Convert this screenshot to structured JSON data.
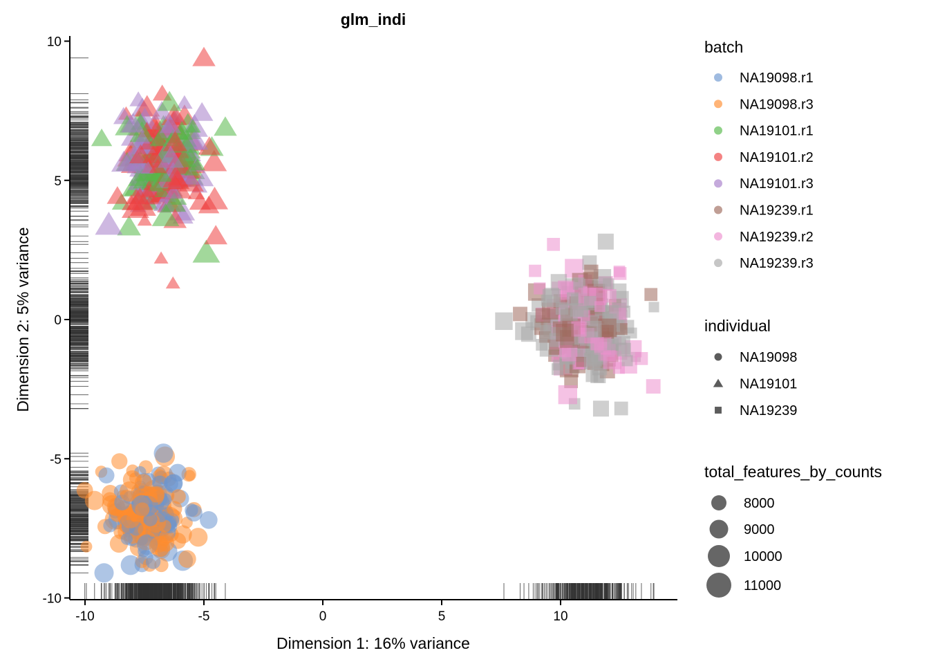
{
  "chart_data": {
    "type": "scatter",
    "title": "glm_indi",
    "xlabel": "Dimension 1: 16% variance",
    "ylabel": "Dimension 2: 5% variance",
    "xlim": [
      -10.6,
      14.8
    ],
    "ylim": [
      -10.2,
      10.2
    ],
    "x_ticks": [
      -10,
      -5,
      0,
      5,
      10
    ],
    "x_tick_labels": [
      "-10",
      "-5",
      "0",
      "5",
      "10"
    ],
    "y_ticks": [
      -10,
      -5,
      0,
      5,
      10
    ],
    "y_tick_labels": [
      "-10",
      "-5",
      "0",
      "5",
      "10"
    ],
    "grid": false,
    "rug": true,
    "legend_position": "right",
    "batch_legend": {
      "title": "batch",
      "entries": [
        {
          "name": "NA19098.r1",
          "color": "#6B96CF"
        },
        {
          "name": "NA19098.r3",
          "color": "#FF8C2E"
        },
        {
          "name": "NA19101.r1",
          "color": "#55B848"
        },
        {
          "name": "NA19101.r2",
          "color": "#EE4040"
        },
        {
          "name": "NA19101.r3",
          "color": "#A67DC9"
        },
        {
          "name": "NA19239.r1",
          "color": "#9E6A5C"
        },
        {
          "name": "NA19239.r2",
          "color": "#EC8FCE"
        },
        {
          "name": "NA19239.r3",
          "color": "#A8A8A8"
        }
      ]
    },
    "individual_legend": {
      "title": "individual",
      "entries": [
        {
          "name": "NA19098",
          "shape": "circle"
        },
        {
          "name": "NA19101",
          "shape": "triangle"
        },
        {
          "name": "NA19239",
          "shape": "square"
        }
      ]
    },
    "size_legend": {
      "title": "total_features_by_counts",
      "entries": [
        {
          "label": "8000",
          "value": 8000
        },
        {
          "label": "9000",
          "value": 9000
        },
        {
          "label": "10000",
          "value": 10000
        },
        {
          "label": "11000",
          "value": 11000
        }
      ]
    },
    "clusters": [
      {
        "individual": "NA19098",
        "shape": "circle",
        "batches": [
          {
            "name": "NA19098.r1",
            "n": 90
          },
          {
            "name": "NA19098.r3",
            "n": 130
          }
        ],
        "center": [
          -7.4,
          -7.0
        ],
        "spread": [
          0.75,
          0.75
        ]
      },
      {
        "individual": "NA19101",
        "shape": "triangle",
        "batches": [
          {
            "name": "NA19101.r1",
            "n": 90
          },
          {
            "name": "NA19101.r2",
            "n": 100
          },
          {
            "name": "NA19101.r3",
            "n": 110
          }
        ],
        "center": [
          -6.7,
          5.6
        ],
        "spread": [
          0.8,
          0.9
        ]
      },
      {
        "individual": "NA19239",
        "shape": "square",
        "batches": [
          {
            "name": "NA19239.r1",
            "n": 70
          },
          {
            "name": "NA19239.r2",
            "n": 90
          },
          {
            "name": "NA19239.r3",
            "n": 160
          }
        ],
        "center": [
          11.0,
          -0.2
        ],
        "spread": [
          0.9,
          0.9
        ]
      }
    ],
    "notable_points": [
      {
        "x": -5.0,
        "y": 9.4,
        "batch": "NA19101.r2",
        "size": 10000
      },
      {
        "x": -6.3,
        "y": 1.3,
        "batch": "NA19101.r2",
        "size": 8000
      },
      {
        "x": -4.9,
        "y": 2.4,
        "batch": "NA19101.r1",
        "size": 11000
      },
      {
        "x": -4.5,
        "y": 3.0,
        "batch": "NA19101.r2",
        "size": 10000
      },
      {
        "x": -6.8,
        "y": 2.2,
        "batch": "NA19101.r2",
        "size": 8000
      },
      {
        "x": -9.3,
        "y": 6.5,
        "batch": "NA19101.r1",
        "size": 9500
      },
      {
        "x": -9.0,
        "y": 3.4,
        "batch": "NA19101.r3",
        "size": 11000
      },
      {
        "x": -4.1,
        "y": 6.9,
        "batch": "NA19101.r1",
        "size": 10000
      },
      {
        "x": -6.7,
        "y": -4.8,
        "batch": "NA19098.r1",
        "size": 10500
      },
      {
        "x": -6.1,
        "y": -5.5,
        "batch": "NA19098.r1",
        "size": 10000
      },
      {
        "x": -9.1,
        "y": -5.6,
        "batch": "NA19098.r1",
        "size": 9500
      },
      {
        "x": -9.2,
        "y": -9.1,
        "batch": "NA19098.r1",
        "size": 10500
      },
      {
        "x": -4.8,
        "y": -7.2,
        "batch": "NA19098.r1",
        "size": 10000
      },
      {
        "x": -5.6,
        "y": -5.6,
        "batch": "NA19098.r3",
        "size": 8000
      },
      {
        "x": -5.7,
        "y": -8.6,
        "batch": "NA19098.r3",
        "size": 10000
      },
      {
        "x": -9.6,
        "y": -6.5,
        "batch": "NA19098.r3",
        "size": 10500
      },
      {
        "x": 9.7,
        "y": 2.7,
        "batch": "NA19239.r2",
        "size": 9000
      },
      {
        "x": 11.9,
        "y": 2.8,
        "batch": "NA19239.r3",
        "size": 10000
      },
      {
        "x": 11.7,
        "y": -3.2,
        "batch": "NA19239.r3",
        "size": 10000
      },
      {
        "x": 13.8,
        "y": 0.9,
        "batch": "NA19239.r1",
        "size": 9000
      },
      {
        "x": 8.3,
        "y": 0.2,
        "batch": "NA19239.r1",
        "size": 9500
      },
      {
        "x": 13.9,
        "y": -2.4,
        "batch": "NA19239.r2",
        "size": 9500
      },
      {
        "x": 10.3,
        "y": -2.7,
        "batch": "NA19239.r2",
        "size": 11000
      },
      {
        "x": 13.4,
        "y": -1.4,
        "batch": "NA19239.r2",
        "size": 9000
      }
    ]
  }
}
